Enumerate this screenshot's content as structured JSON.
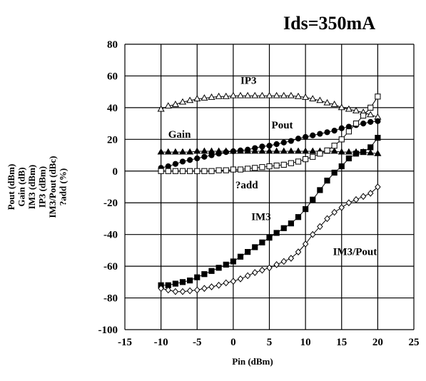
{
  "chart_data": {
    "type": "line",
    "title": "Ids=350mA",
    "xlabel": "Pin (dBm)",
    "ylabel_lines": [
      "Pout (dBm)",
      "Gain (dB)",
      "IM3 (dBm)",
      "IP3 (dBm)",
      "IM3/Pout (dBc)",
      "?add (%)"
    ],
    "xlim": [
      -15,
      25
    ],
    "ylim": [
      -100,
      80
    ],
    "xticks": [
      -15,
      -10,
      -5,
      0,
      5,
      10,
      15,
      20,
      25
    ],
    "yticks": [
      -100,
      -80,
      -60,
      -40,
      -20,
      0,
      20,
      40,
      60,
      80
    ],
    "grid": true,
    "series": [
      {
        "name": "IP3",
        "marker": "triangle-open",
        "x": [
          -10,
          -9,
          -8,
          -7,
          -6,
          -5,
          -4,
          -3,
          -2,
          -1,
          0,
          1,
          2,
          3,
          4,
          5,
          6,
          7,
          8,
          9,
          10,
          11,
          12,
          13,
          14,
          15,
          16,
          17,
          18,
          19,
          20
        ],
        "y": [
          39,
          41,
          42,
          43.5,
          44.5,
          45.5,
          46,
          46.5,
          47,
          47,
          47.5,
          47.5,
          47.5,
          47.5,
          47.5,
          47.5,
          47.5,
          47.5,
          47.5,
          47,
          46.5,
          45.5,
          44.5,
          43,
          42,
          40,
          39,
          38,
          37,
          35.5,
          34
        ]
      },
      {
        "name": "Pout",
        "marker": "circle-filled",
        "x": [
          -10,
          -9,
          -8,
          -7,
          -6,
          -5,
          -4,
          -3,
          -2,
          -1,
          0,
          1,
          2,
          3,
          4,
          5,
          6,
          7,
          8,
          9,
          10,
          11,
          12,
          13,
          14,
          15,
          16,
          17,
          18,
          19,
          20
        ],
        "y": [
          2,
          3,
          4.5,
          6,
          7,
          8,
          9,
          10,
          11,
          12,
          12.5,
          13,
          13.5,
          14.5,
          15.5,
          16,
          17,
          18,
          19,
          20.5,
          21.5,
          22.5,
          23.5,
          24.5,
          25.5,
          27,
          28,
          29,
          30,
          31,
          31.5
        ]
      },
      {
        "name": "Gain",
        "marker": "triangle-filled",
        "x": [
          -10,
          -9,
          -8,
          -7,
          -6,
          -5,
          -4,
          -3,
          -2,
          -1,
          0,
          1,
          2,
          3,
          4,
          5,
          6,
          7,
          8,
          9,
          10,
          11,
          12,
          13,
          14,
          15,
          16,
          17,
          18,
          19,
          20
        ],
        "y": [
          12,
          12,
          12,
          12,
          12,
          12.5,
          12.5,
          12.5,
          12.5,
          12.5,
          12.5,
          12.5,
          12.5,
          12.5,
          12.5,
          12.5,
          12.5,
          12.5,
          12.5,
          12.5,
          12.5,
          12.5,
          12.5,
          12.5,
          12.5,
          12,
          12,
          12,
          12,
          11.5,
          11
        ]
      },
      {
        "name": "?add",
        "marker": "square-open",
        "x": [
          -10,
          -9,
          -8,
          -7,
          -6,
          -5,
          -4,
          -3,
          -2,
          -1,
          0,
          1,
          2,
          3,
          4,
          5,
          6,
          7,
          8,
          9,
          10,
          11,
          12,
          13,
          14,
          15,
          16,
          17,
          18,
          19,
          20
        ],
        "y": [
          0,
          0,
          0,
          0,
          0,
          0,
          0,
          0,
          0.5,
          0.5,
          1,
          1,
          1.5,
          2,
          2.5,
          3,
          3.5,
          4,
          5,
          6,
          7.5,
          9,
          11,
          13,
          16,
          20,
          25,
          30,
          35,
          40,
          47
        ]
      },
      {
        "name": "IM3",
        "marker": "square-filled",
        "x": [
          -10,
          -9,
          -8,
          -7,
          -6,
          -5,
          -4,
          -3,
          -2,
          -1,
          0,
          1,
          2,
          3,
          4,
          5,
          6,
          7,
          8,
          9,
          10,
          11,
          12,
          13,
          14,
          15,
          16,
          17,
          18,
          19,
          20
        ],
        "y": [
          -72,
          -72,
          -71,
          -70,
          -69,
          -67,
          -65,
          -63,
          -61,
          -59,
          -57,
          -54,
          -51,
          -48,
          -45,
          -42,
          -39,
          -36,
          -33,
          -29,
          -24,
          -18,
          -12,
          -6,
          -1,
          3,
          8,
          11,
          12,
          15,
          21
        ]
      },
      {
        "name": "IM3/Pout",
        "marker": "diamond-open",
        "x": [
          -10,
          -9,
          -8,
          -7,
          -6,
          -5,
          -4,
          -3,
          -2,
          -1,
          0,
          1,
          2,
          3,
          4,
          5,
          6,
          7,
          8,
          9,
          10,
          11,
          12,
          13,
          14,
          15,
          16,
          17,
          18,
          19,
          20
        ],
        "y": [
          -74,
          -75,
          -76,
          -76,
          -75.5,
          -75,
          -74,
          -73,
          -72,
          -70.5,
          -69.5,
          -68,
          -66,
          -64,
          -62.5,
          -61,
          -59,
          -57,
          -55,
          -51,
          -46,
          -40,
          -35,
          -30,
          -26,
          -23,
          -20,
          -18,
          -16,
          -14,
          -10
        ]
      }
    ],
    "annotations": [
      {
        "text": "IP3",
        "x": 1,
        "y": 55
      },
      {
        "text": "Pout",
        "x": 5.3,
        "y": 27
      },
      {
        "text": "Gain",
        "x": -9,
        "y": 21
      },
      {
        "text": "?add",
        "x": 0.3,
        "y": -11
      },
      {
        "text": "IM3",
        "x": 2.5,
        "y": -31
      },
      {
        "text": "IM3/Pout",
        "x": 13.8,
        "y": -53
      }
    ]
  }
}
